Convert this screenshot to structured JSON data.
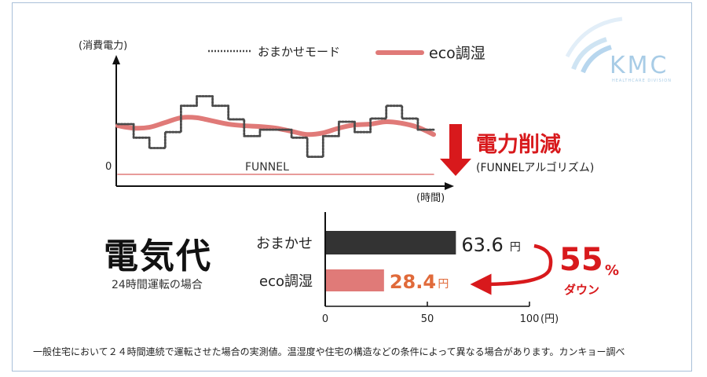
{
  "line_chart": {
    "y_axis_label": "(消費電力)",
    "x_axis_label": "(時間)",
    "zero_label": "0",
    "funnel_label": "FUNNEL"
  },
  "legend": {
    "items": [
      {
        "label": "おまかせモード",
        "style": "dotted-dark",
        "color": "#4a4a4a"
      },
      {
        "label": "eco調湿",
        "style": "thick-red",
        "color": "#e07a78"
      }
    ]
  },
  "reduction": {
    "title": "電力削減",
    "subtitle": "(FUNNELアルゴリズム)"
  },
  "cost": {
    "title": "電気代",
    "subtitle": "24時間運転の場合"
  },
  "bar_chart": {
    "axis_unit": "(円)",
    "ticks": [
      0,
      50,
      100
    ],
    "value_unit": "円"
  },
  "savings": {
    "percent": "55",
    "percent_sign": "%",
    "label": "ダウン"
  },
  "logo": {
    "text": "KMC",
    "tagline": "HEALTHCARE DIVISION"
  },
  "footnote": "一般住宅において２４時間連続で運転させた場合の実測値。温湿度や住宅の構造などの条件によって異なる場合があります。カンキョー調べ",
  "chart_data": [
    {
      "type": "line",
      "xlabel": "(時間)",
      "ylabel": "(消費電力)",
      "x": [
        0,
        1,
        2,
        3,
        4,
        5,
        6,
        7,
        8,
        9,
        10,
        11,
        12,
        13,
        14,
        15,
        16,
        17,
        18,
        19,
        20
      ],
      "ylim": [
        0,
        130
      ],
      "series": [
        {
          "name": "おまかせモード",
          "values": [
            63,
            46,
            33,
            53,
            86,
            98,
            86,
            69,
            48,
            56,
            56,
            46,
            22,
            48,
            66,
            53,
            70,
            86,
            70,
            56,
            56
          ]
        },
        {
          "name": "eco調湿",
          "values": [
            61,
            58,
            59,
            65,
            71,
            71,
            67,
            63,
            61,
            60,
            58,
            54,
            50,
            52,
            58,
            62,
            63,
            66,
            64,
            59,
            50
          ]
        },
        {
          "name": "FUNNEL",
          "values": [
            0,
            0,
            0,
            0,
            0,
            0,
            0,
            0,
            0,
            0,
            0,
            0,
            0,
            0,
            0,
            0,
            0,
            0,
            0,
            0,
            0
          ]
        }
      ],
      "legend": "top",
      "grid": false
    },
    {
      "type": "bar",
      "orientation": "horizontal",
      "categories": [
        "おまかせ",
        "eco調湿"
      ],
      "values": [
        63.6,
        28.4
      ],
      "value_labels": [
        "63.6",
        "28.4"
      ],
      "colors": [
        "#333333",
        "#e07a78"
      ],
      "xlabel": "(円)",
      "xlim": [
        0,
        100
      ],
      "grid": false
    }
  ]
}
